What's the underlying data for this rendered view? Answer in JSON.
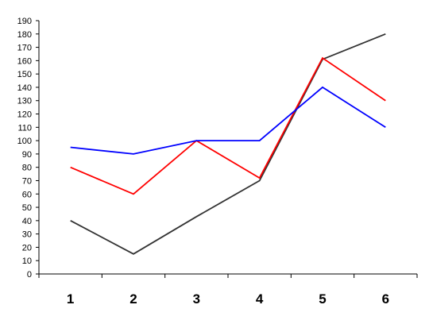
{
  "chart_data": {
    "type": "line",
    "title": "",
    "xlabel": "",
    "ylabel": "",
    "categories": [
      "1",
      "2",
      "3",
      "4",
      "5",
      "6"
    ],
    "ylim": [
      0,
      190
    ],
    "yticks": [
      0,
      10,
      20,
      30,
      40,
      50,
      60,
      70,
      80,
      90,
      100,
      110,
      120,
      130,
      140,
      150,
      160,
      170,
      180,
      190
    ],
    "grid": false,
    "legend": "none",
    "series": [
      {
        "color": "#333333",
        "values": [
          40,
          15,
          43,
          70,
          161,
          180
        ]
      },
      {
        "color": "#ff0000",
        "values": [
          80,
          60,
          100,
          72,
          162,
          130
        ]
      },
      {
        "color": "#0000ff",
        "values": [
          95,
          90,
          100,
          100,
          140,
          110
        ]
      }
    ]
  }
}
